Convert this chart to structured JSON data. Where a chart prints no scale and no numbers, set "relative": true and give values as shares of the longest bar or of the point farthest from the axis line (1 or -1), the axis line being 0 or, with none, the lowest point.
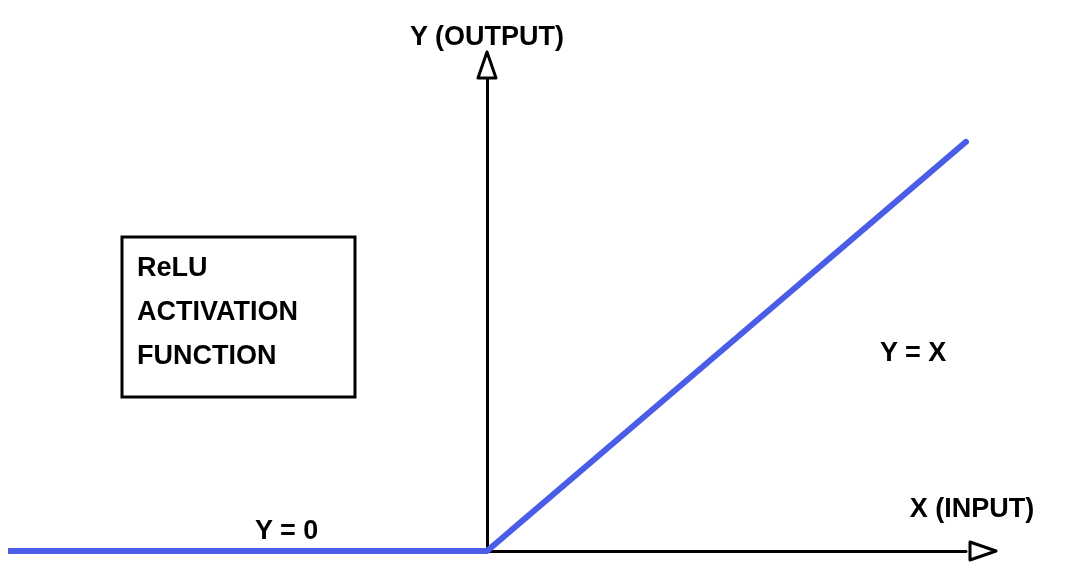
{
  "chart_data": {
    "type": "line",
    "relative": true,
    "xlabel": "X (INPUT)",
    "ylabel": "Y (OUTPUT)",
    "categories": [
      null,
      null,
      null
    ],
    "series": [
      {
        "color": "#4a5de6",
        "values": [
          0,
          0,
          1
        ]
      }
    ],
    "annotations": [
      "ReLU\nACTIVATION\nFUNCTION",
      "Y = X",
      "Y = 0"
    ],
    "marker": "none",
    "grid": false
  }
}
